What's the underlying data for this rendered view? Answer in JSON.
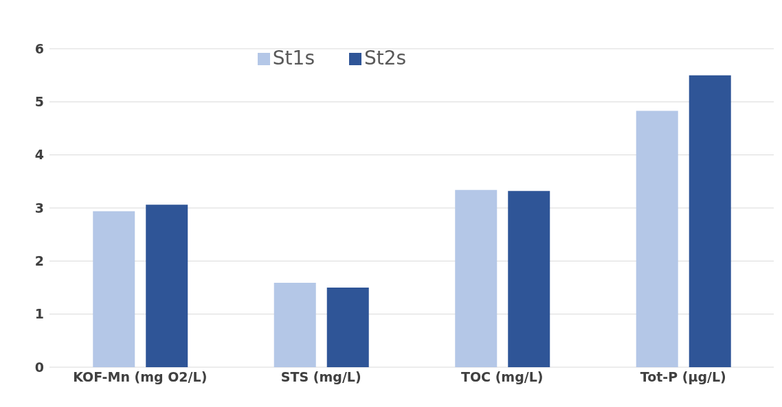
{
  "chart_data": {
    "type": "bar",
    "categories": [
      "KOF-Mn (mg O2/L)",
      "STS (mg/L)",
      "TOC (mg/L)",
      "Tot-P (µg/L)"
    ],
    "series": [
      {
        "name": "St1s",
        "color": "#b4c7e7",
        "values": [
          2.94,
          1.59,
          3.34,
          4.83
        ]
      },
      {
        "name": "St2s",
        "color": "#2f5597",
        "values": [
          3.06,
          1.5,
          3.32,
          5.5
        ]
      }
    ],
    "ylim": [
      0,
      6
    ],
    "yticks": [
      0,
      1,
      2,
      3,
      4,
      5,
      6
    ],
    "grid": "y",
    "legend": "top"
  }
}
